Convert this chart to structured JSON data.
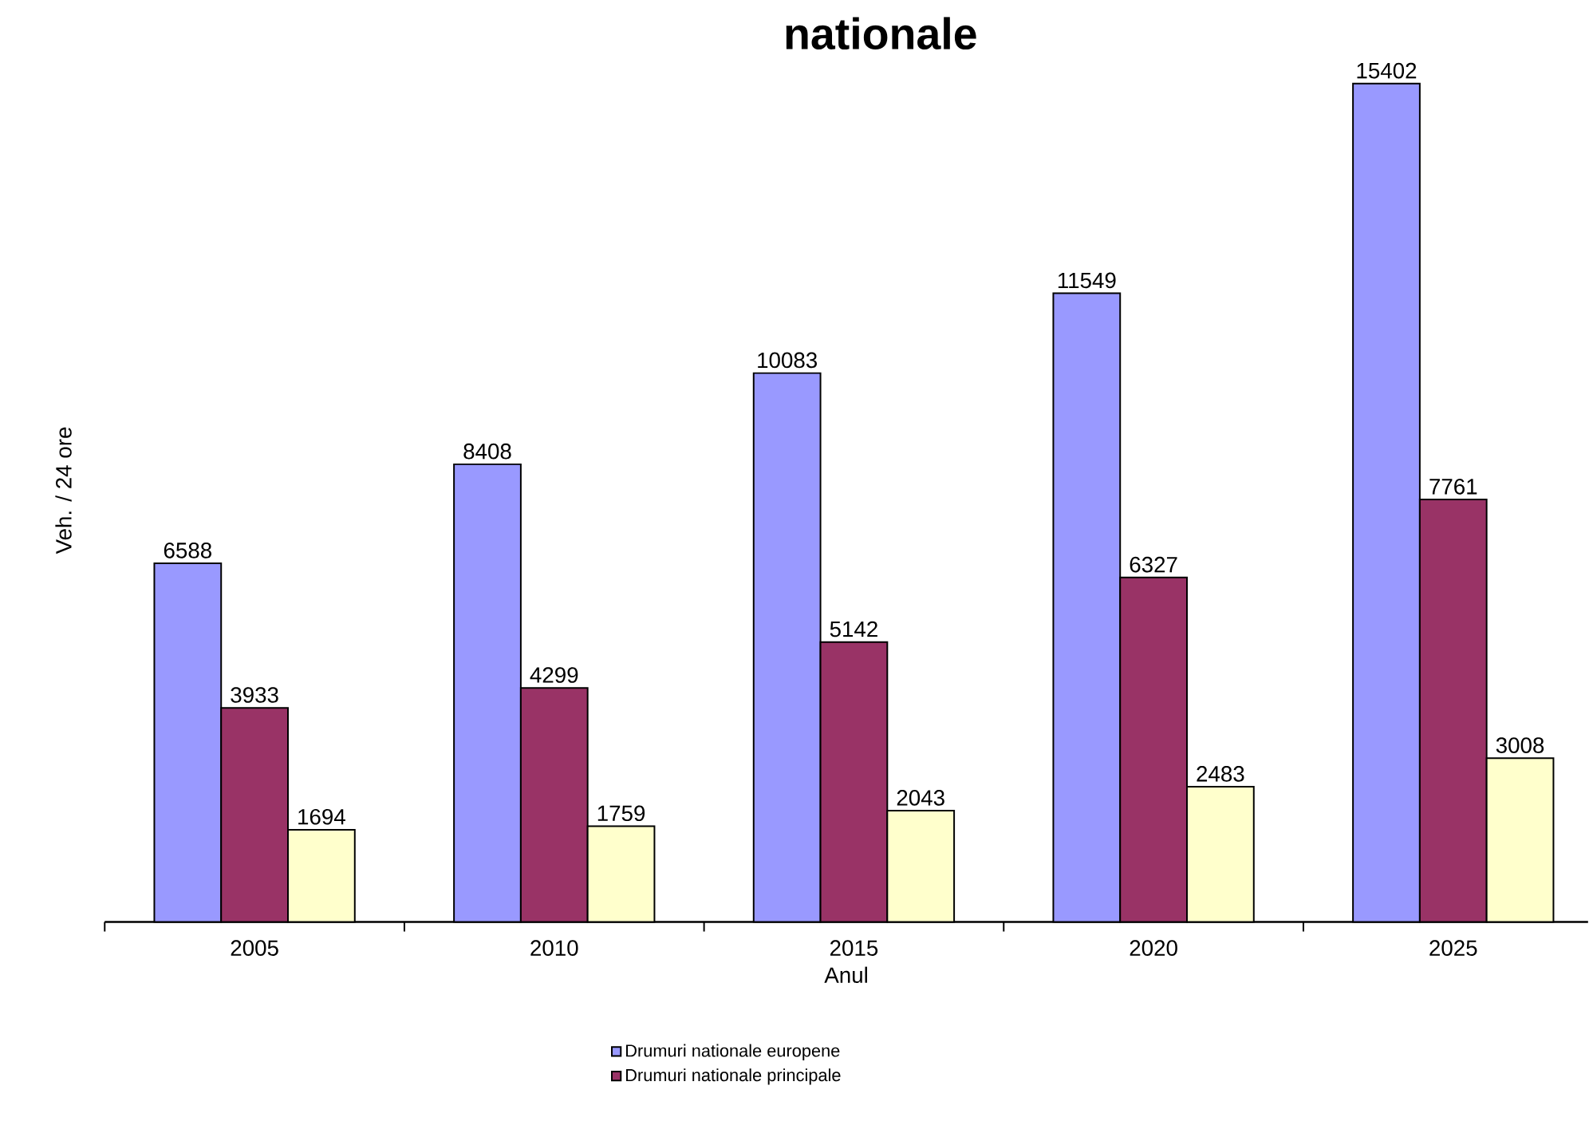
{
  "chart_data": {
    "type": "bar",
    "title": "nationale",
    "xlabel": "Anul",
    "ylabel": "Veh. / 24 ore",
    "categories": [
      "2005",
      "2010",
      "2015",
      "2020",
      "2025"
    ],
    "series": [
      {
        "name": "Drumuri nationale europene",
        "color": "#9999ff",
        "values": [
          6588,
          8408,
          10083,
          11549,
          15402
        ]
      },
      {
        "name": "Drumuri nationale principale",
        "color": "#993366",
        "values": [
          3933,
          4299,
          5142,
          6327,
          7761
        ]
      },
      {
        "color": "#ffffcc",
        "values": [
          1694,
          1759,
          2043,
          2483,
          3008
        ]
      }
    ],
    "data_labels": true,
    "legend": "bottom"
  }
}
